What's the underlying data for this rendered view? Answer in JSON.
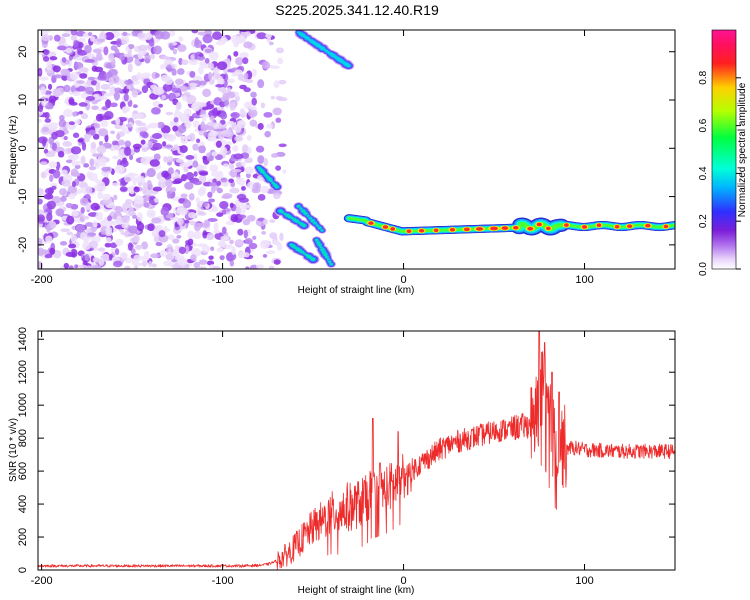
{
  "figure_title": "S225.2025.341.12.40.R19",
  "colors": {
    "axis": "#000000",
    "snr_line": "#ee2b2b",
    "spectrogram_weak": "#e3ccf8",
    "spectrogram_mid": "#a866ee",
    "spectrogram_strong": "#8a2be2"
  },
  "chart_data": [
    {
      "type": "heatmap",
      "title": "S225.2025.341.12.40.R19",
      "xlabel": "Height of straight line (km)",
      "ylabel": "Frequency (Hz)",
      "xlim": [
        -202,
        150
      ],
      "ylim": [
        -25,
        24.5
      ],
      "xticks": [
        -200,
        -100,
        0,
        100
      ],
      "yticks": [
        -20,
        -10,
        0,
        10,
        20
      ],
      "colorbar": {
        "label": "Normalized spectral amplitude",
        "range": [
          0,
          1
        ],
        "ticks": [
          0,
          0.2,
          0.4,
          0.6,
          0.8
        ],
        "tick_labels": [
          "0.0",
          "0.2",
          "0.4",
          "0.6",
          "0.8"
        ],
        "colormap": "rainbow (white-violet-blue-cyan-green-yellow-red-magenta)"
      },
      "features": [
        {
          "name": "noise field",
          "x_range": [
            -202,
            -75
          ],
          "freq_range": [
            -25,
            24.5
          ],
          "amplitude": 0.05
        },
        {
          "name": "carrier track",
          "x_range": [
            -30,
            150
          ],
          "freq_start": -15,
          "freq_level": -16.5,
          "amplitude_peak": 0.85
        },
        {
          "name": "upper echo",
          "x_range": [
            -58,
            -30
          ],
          "freq_range": [
            24,
            17
          ],
          "amplitude_peak": 0.2
        },
        {
          "name": "diagonal echoes",
          "x_range": [
            -80,
            -40
          ],
          "freq_range": [
            -4,
            -24
          ],
          "amplitude_peak": 0.2
        }
      ]
    },
    {
      "type": "line",
      "title": "",
      "xlabel": "Height of straight line (km)",
      "ylabel": "SNR (10 * v/v)",
      "xlim": [
        -202,
        150
      ],
      "ylim": [
        0,
        1450
      ],
      "xticks": [
        -200,
        -100,
        0,
        100
      ],
      "yticks": [
        0,
        200,
        400,
        600,
        800,
        1000,
        1200,
        1400
      ],
      "series": [
        {
          "name": "SNR",
          "x": [
            -202,
            -180,
            -160,
            -140,
            -120,
            -100,
            -90,
            -80,
            -75,
            -70,
            -65,
            -60,
            -55,
            -50,
            -45,
            -40,
            -35,
            -30,
            -25,
            -20,
            -19,
            -15,
            -10,
            -5,
            0,
            5,
            10,
            15,
            20,
            25,
            30,
            40,
            50,
            60,
            65,
            70,
            72,
            75,
            77,
            80,
            82,
            85,
            88,
            90,
            95,
            100,
            110,
            120,
            130,
            140,
            150
          ],
          "values": [
            25,
            25,
            25,
            25,
            25,
            25,
            25,
            28,
            35,
            55,
            90,
            140,
            200,
            260,
            300,
            340,
            360,
            380,
            400,
            430,
            460,
            470,
            490,
            520,
            560,
            610,
            650,
            690,
            730,
            760,
            780,
            810,
            840,
            860,
            870,
            880,
            900,
            1000,
            1100,
            950,
            820,
            780,
            750,
            740,
            740,
            730,
            725,
            720,
            720,
            720,
            720
          ],
          "annotation": "noisy trace; spikes near x=-17 (~920), x=-3 (~840), x=75 (~1450)"
        }
      ]
    }
  ]
}
